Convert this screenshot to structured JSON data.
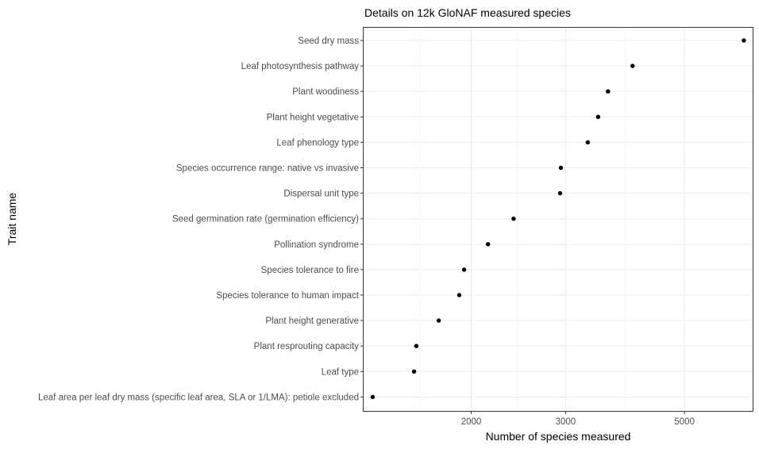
{
  "chart_data": {
    "type": "scatter",
    "title": "Details on 12k GloNAF measured species",
    "xlabel": "Number of species measured",
    "ylabel": "Trait name",
    "x_scale": "log",
    "xlim": [
      1260,
      6700
    ],
    "xticks": [
      2000,
      3000,
      5000
    ],
    "x_minor_ticks": [
      1600,
      2450,
      3870
    ],
    "grid": true,
    "categories": [
      "Seed dry mass",
      "Leaf photosynthesis pathway",
      "Plant woodiness",
      "Plant height vegetative",
      "Leaf phenology type",
      "Species occurrence range: native vs invasive",
      "Dispersal unit type",
      "Seed germination rate (germination efficiency)",
      "Pollination syndrome",
      "Species tolerance to fire",
      "Species tolerance to human impact",
      "Plant height generative",
      "Plant resprouting capacity",
      "Leaf type",
      "Leaf area per leaf dry mass (specific leaf area, SLA or 1/LMA): petiole excluded"
    ],
    "values": [
      6450,
      4000,
      3600,
      3450,
      3300,
      2940,
      2930,
      2400,
      2150,
      1940,
      1900,
      1740,
      1580,
      1565,
      1310
    ]
  },
  "colors": {
    "point": "#000000",
    "grid": "#ebebeb",
    "border": "#333333",
    "label": "#4d4d4d"
  }
}
